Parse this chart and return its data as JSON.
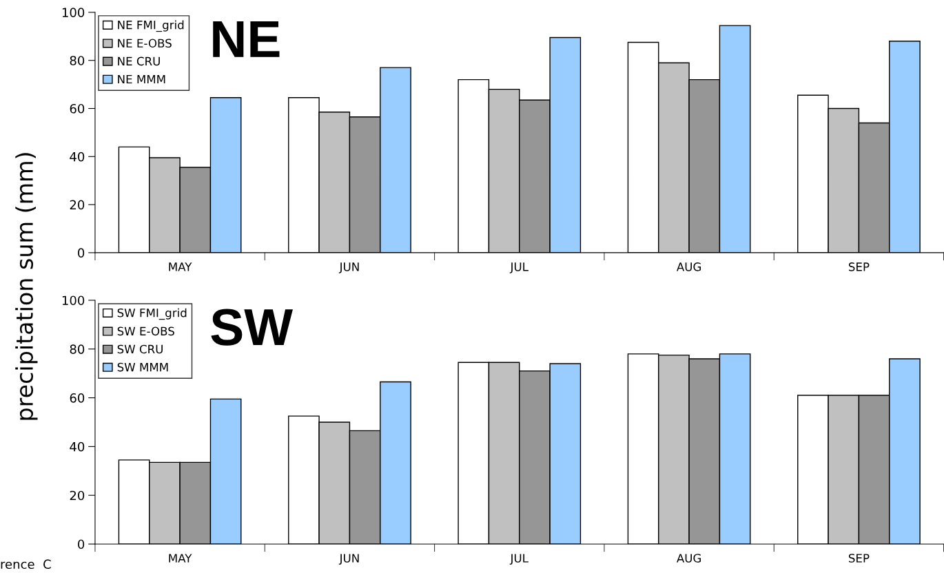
{
  "chart_data": [
    {
      "type": "bar",
      "title": "NE",
      "ylabel": "precipitation sum (mm)",
      "categories": [
        "MAY",
        "JUN",
        "JUL",
        "AUG",
        "SEP"
      ],
      "series": [
        {
          "name": "NE FMI_grid",
          "color": "#ffffff",
          "values": [
            44,
            64.5,
            72,
            87.5,
            65.5
          ]
        },
        {
          "name": "NE E-OBS",
          "color": "#c0c0c0",
          "values": [
            39.5,
            58.5,
            68,
            79,
            60
          ]
        },
        {
          "name": "NE CRU",
          "color": "#969696",
          "values": [
            35.5,
            56.5,
            63.5,
            72,
            54
          ]
        },
        {
          "name": "NE MMM",
          "color": "#99ccff",
          "values": [
            64.5,
            77,
            89.5,
            94.5,
            88
          ]
        }
      ],
      "ylim": [
        0,
        100
      ],
      "yticks": [
        0,
        20,
        40,
        60,
        80,
        100
      ],
      "grid": false,
      "legend": "top left"
    },
    {
      "type": "bar",
      "title": "SW",
      "categories": [
        "MAY",
        "JUN",
        "JUL",
        "AUG",
        "SEP"
      ],
      "series": [
        {
          "name": "SW FMI_grid",
          "color": "#ffffff",
          "values": [
            34.5,
            52.5,
            74.5,
            78,
            61
          ]
        },
        {
          "name": "SW E-OBS",
          "color": "#c0c0c0",
          "values": [
            33.5,
            50,
            74.5,
            77.5,
            61
          ]
        },
        {
          "name": "SW CRU",
          "color": "#969696",
          "values": [
            33.5,
            46.5,
            71,
            76,
            61
          ]
        },
        {
          "name": "SW MMM",
          "color": "#99ccff",
          "values": [
            59.5,
            66.5,
            74,
            78,
            76
          ]
        }
      ],
      "ylim": [
        0,
        100
      ],
      "yticks": [
        0,
        20,
        40,
        60,
        80,
        100
      ],
      "grid": false,
      "legend": "top left",
      "annotations": [
        "rence  C"
      ]
    }
  ]
}
